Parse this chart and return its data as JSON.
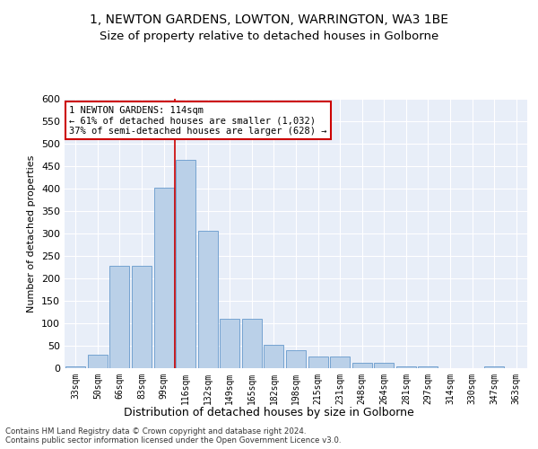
{
  "title": "1, NEWTON GARDENS, LOWTON, WARRINGTON, WA3 1BE",
  "subtitle": "Size of property relative to detached houses in Golborne",
  "xlabel": "Distribution of detached houses by size in Golborne",
  "ylabel": "Number of detached properties",
  "categories": [
    "33sqm",
    "50sqm",
    "66sqm",
    "83sqm",
    "99sqm",
    "116sqm",
    "132sqm",
    "149sqm",
    "165sqm",
    "182sqm",
    "198sqm",
    "215sqm",
    "231sqm",
    "248sqm",
    "264sqm",
    "281sqm",
    "297sqm",
    "314sqm",
    "330sqm",
    "347sqm",
    "363sqm"
  ],
  "values": [
    5,
    30,
    228,
    228,
    403,
    465,
    307,
    110,
    110,
    53,
    40,
    26,
    26,
    12,
    12,
    5,
    5,
    0,
    0,
    5,
    0
  ],
  "bar_color": "#bad0e8",
  "bar_edge_color": "#6699cc",
  "vline_color": "#cc0000",
  "annotation_text": "1 NEWTON GARDENS: 114sqm\n← 61% of detached houses are smaller (1,032)\n37% of semi-detached houses are larger (628) →",
  "annotation_box_color": "#ffffff",
  "annotation_box_edge": "#cc0000",
  "ylim": [
    0,
    600
  ],
  "yticks": [
    0,
    50,
    100,
    150,
    200,
    250,
    300,
    350,
    400,
    450,
    500,
    550,
    600
  ],
  "footer1": "Contains HM Land Registry data © Crown copyright and database right 2024.",
  "footer2": "Contains public sector information licensed under the Open Government Licence v3.0.",
  "bg_color": "#e8eef8",
  "title_fontsize": 10,
  "subtitle_fontsize": 9.5
}
